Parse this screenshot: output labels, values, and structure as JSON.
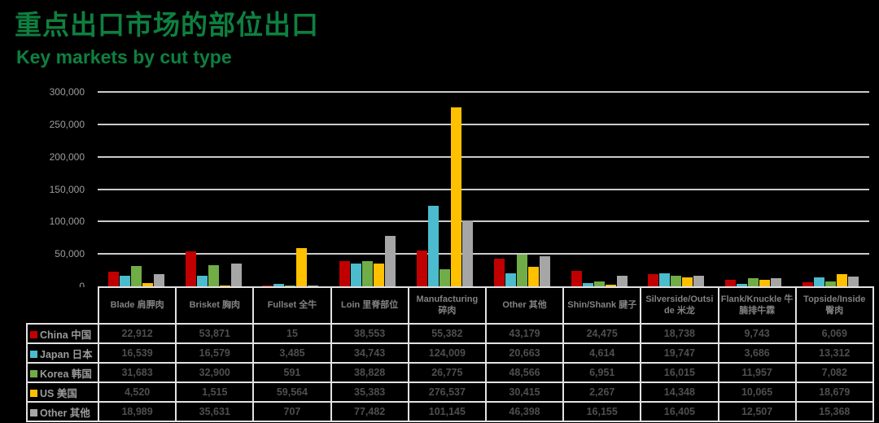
{
  "header": {
    "title_zh": "重点出口市场的部位出口",
    "title_en": "Key markets by cut type"
  },
  "colors": {
    "background": "#000000",
    "title_green": "#0E8040",
    "gridline": "#CBCBCB",
    "axis_label": "#9D9D9D",
    "table_border": "#E2E2E2",
    "table_number_text": "#4E4E4E",
    "table_header_text": "#828282",
    "legend_text": "#9B9B9B"
  },
  "chart_data": {
    "type": "bar",
    "title": "重点出口市场的部位出口",
    "subtitle": "Key markets by cut type",
    "categories": [
      "Blade 肩胛肉",
      "Brisket 胸肉",
      "Fullset 全牛",
      "Loin 里脊部位",
      "Manufacturing 碎肉",
      "Other 其他",
      "Shin/Shank 腱子",
      "Silverside/Outside 米龙",
      "Flank/Knuckle 牛腩排牛霖",
      "Topside/Inside 臀肉"
    ],
    "series": [
      {
        "name": "China 中国",
        "color": "#C00000",
        "values": [
          22912,
          53871,
          15,
          38553,
          55382,
          43179,
          24475,
          18738,
          9743,
          6069
        ]
      },
      {
        "name": "Japan 日本",
        "color": "#4BBCCD",
        "values": [
          16539,
          16579,
          3485,
          34743,
          124009,
          20663,
          4614,
          19747,
          3686,
          13312
        ]
      },
      {
        "name": "Korea 韩国",
        "color": "#70AD47",
        "values": [
          31683,
          32900,
          591,
          38828,
          26775,
          48566,
          6951,
          16015,
          11957,
          7082
        ]
      },
      {
        "name": "US 美国",
        "color": "#FFC000",
        "values": [
          4520,
          1515,
          59564,
          35383,
          276537,
          30415,
          2267,
          14348,
          10065,
          18679
        ]
      },
      {
        "name": "Other 其他",
        "color": "#A6A6A6",
        "values": [
          18989,
          35631,
          707,
          77482,
          101145,
          46398,
          16155,
          16405,
          12507,
          15368
        ]
      }
    ],
    "ylim": [
      0,
      300000
    ],
    "ytick_step": 50000,
    "grid": true,
    "legend_position": "table-rows-left",
    "table_shown": true
  }
}
